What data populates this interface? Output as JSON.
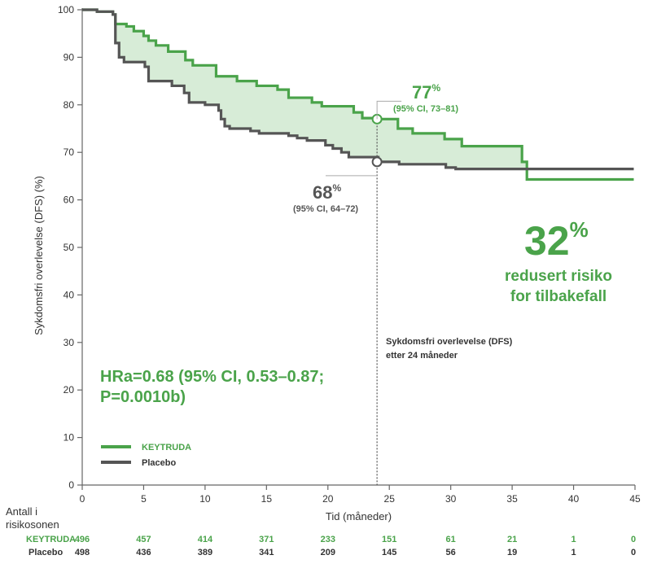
{
  "colors": {
    "keytruda": "#4aa34a",
    "placebo": "#555555",
    "fill": "#d7ecd7",
    "axis": "#666666",
    "text": "#333333"
  },
  "chart_data": {
    "type": "line",
    "step": true,
    "xlabel": "Tid (måneder)",
    "ylabel": "Sykdomsfri overlevelse (DFS) (%)",
    "xlim": [
      0,
      45
    ],
    "ylim": [
      0,
      100
    ],
    "xticks": [
      0,
      5,
      10,
      15,
      20,
      25,
      30,
      35,
      40,
      45
    ],
    "yticks": [
      0,
      10,
      20,
      30,
      40,
      50,
      60,
      70,
      80,
      90,
      100
    ],
    "grid": false,
    "legend_position": "bottom-left",
    "series": [
      {
        "name": "KEYTRUDA",
        "color": "#4aa34a",
        "points": [
          [
            0,
            100
          ],
          [
            1.2,
            99.6
          ],
          [
            2.5,
            99
          ],
          [
            2.7,
            97
          ],
          [
            3.6,
            96.5
          ],
          [
            4.2,
            95.5
          ],
          [
            5.0,
            94.5
          ],
          [
            5.4,
            93.5
          ],
          [
            6.0,
            92.5
          ],
          [
            7.0,
            91.2
          ],
          [
            8.4,
            89.4
          ],
          [
            9.0,
            88.3
          ],
          [
            10.9,
            86
          ],
          [
            12.6,
            85
          ],
          [
            14.2,
            84
          ],
          [
            15.9,
            83.2
          ],
          [
            16.8,
            81.5
          ],
          [
            18.7,
            80.5
          ],
          [
            19.5,
            79.7
          ],
          [
            22.1,
            78.4
          ],
          [
            22.8,
            77.2
          ],
          [
            24.0,
            77
          ],
          [
            25.7,
            75
          ],
          [
            26.9,
            74
          ],
          [
            29.5,
            72.8
          ],
          [
            30.9,
            71.3
          ],
          [
            35.8,
            68
          ],
          [
            36.2,
            64.3
          ],
          [
            44.9,
            64.3
          ]
        ]
      },
      {
        "name": "Placebo",
        "color": "#555555",
        "points": [
          [
            0,
            100
          ],
          [
            1.2,
            99.6
          ],
          [
            2.5,
            99
          ],
          [
            2.7,
            93
          ],
          [
            3.0,
            90
          ],
          [
            3.4,
            89
          ],
          [
            5.1,
            88
          ],
          [
            5.4,
            85
          ],
          [
            7.3,
            84
          ],
          [
            8.3,
            82.5
          ],
          [
            8.7,
            80.5
          ],
          [
            10.0,
            80
          ],
          [
            11.1,
            78.8
          ],
          [
            11.3,
            77
          ],
          [
            11.6,
            75.5
          ],
          [
            12.0,
            75
          ],
          [
            13.7,
            74.5
          ],
          [
            14.4,
            74
          ],
          [
            16.8,
            73.5
          ],
          [
            17.5,
            73
          ],
          [
            18.3,
            72.5
          ],
          [
            19.8,
            71.5
          ],
          [
            20.4,
            70.8
          ],
          [
            21.1,
            70
          ],
          [
            21.7,
            69
          ],
          [
            24.1,
            68
          ],
          [
            25.8,
            67.5
          ],
          [
            29.6,
            66.8
          ],
          [
            30.4,
            66.5
          ],
          [
            44.9,
            66.5
          ]
        ]
      }
    ],
    "markers": [
      {
        "series": "KEYTRUDA",
        "x": 24,
        "y": 77
      },
      {
        "series": "Placebo",
        "x": 24,
        "y": 68
      }
    ],
    "annotations": {
      "keytruda_pct": "77",
      "keytruda_pct_sup": "%",
      "keytruda_ci": "(95% CI, 73–81)",
      "placebo_pct": "68",
      "placebo_pct_sup": "%",
      "placebo_ci": "(95% CI, 64–72)",
      "reduction_pct": "32",
      "reduction_pct_sup": "%",
      "reduction_line1": "redusert risiko",
      "reduction_line2": "for tilbakefall",
      "dfs_label_line1": "Sykdomsfri overlevelse (DFS)",
      "dfs_label_line2": "etter 24 måneder",
      "hr_line1": "HRa=0.68 (95% CI, 0.53–0.87;",
      "hr_line2": "P=0.0010b)"
    },
    "risk_table": {
      "title_line1": "Antall i",
      "title_line2": "risikosonen",
      "rows": [
        {
          "label": "KEYTRUDA",
          "values": [
            "496",
            "457",
            "414",
            "371",
            "233",
            "151",
            "61",
            "21",
            "1",
            "0"
          ]
        },
        {
          "label": "Placebo",
          "values": [
            "498",
            "436",
            "389",
            "341",
            "209",
            "145",
            "56",
            "19",
            "1",
            "0"
          ]
        }
      ]
    }
  }
}
